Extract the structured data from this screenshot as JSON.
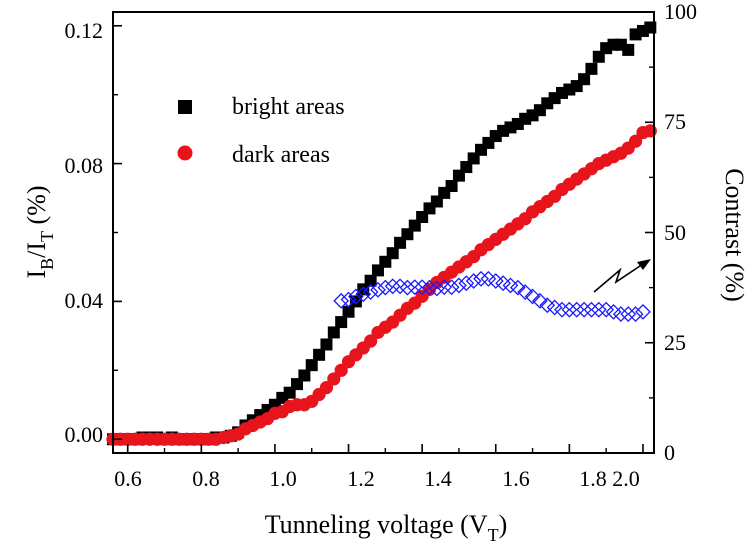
{
  "chart_data": {
    "type": "scatter",
    "title": "",
    "xlabel": "Tunneling voltage (V_T)",
    "xlabel_main": "Tunneling voltage (V",
    "xlabel_sub": "T",
    "xlabel_tail": ")",
    "ylabel_left": "I_B/I_T (%)",
    "ylabel_left_parts": {
      "i1": "I",
      "sub1": "B",
      "slash": "/I",
      "sub2": "T",
      "tail": " (%)"
    },
    "ylabel_right": "Contrast (%)",
    "xlim": [
      0.56,
      2.03
    ],
    "ylim_left": [
      -0.004,
      0.124
    ],
    "ylim_right": [
      0,
      100
    ],
    "x_ticks": [
      "0.6",
      "0.8",
      "1.0",
      "1.2",
      "1.4",
      "1.6",
      "1.8",
      "2.0"
    ],
    "y_left_ticks": [
      "0.00",
      "0.04",
      "0.08",
      "0.12"
    ],
    "y_right_ticks": [
      "0",
      "25",
      "50",
      "75",
      "100"
    ],
    "legend_position": "upper-left",
    "series": [
      {
        "name": "bright areas",
        "axis": "left",
        "marker": "square",
        "color": "#000000",
        "points": [
          [
            0.56,
            0.0
          ],
          [
            0.58,
            0.0
          ],
          [
            0.6,
            0.0
          ],
          [
            0.62,
            0.0
          ],
          [
            0.64,
            0.0005
          ],
          [
            0.66,
            0.0005
          ],
          [
            0.68,
            0.0005
          ],
          [
            0.7,
            0.0
          ],
          [
            0.72,
            0.0005
          ],
          [
            0.74,
            0.0
          ],
          [
            0.76,
            0.0
          ],
          [
            0.78,
            0.0
          ],
          [
            0.8,
            0.0
          ],
          [
            0.82,
            0.0
          ],
          [
            0.84,
            0.0005
          ],
          [
            0.86,
            0.0005
          ],
          [
            0.88,
            0.001
          ],
          [
            0.9,
            0.002
          ],
          [
            0.92,
            0.004
          ],
          [
            0.94,
            0.0055
          ],
          [
            0.96,
            0.007
          ],
          [
            0.98,
            0.0085
          ],
          [
            1.0,
            0.01
          ],
          [
            1.02,
            0.012
          ],
          [
            1.04,
            0.0135
          ],
          [
            1.06,
            0.016
          ],
          [
            1.08,
            0.0185
          ],
          [
            1.1,
            0.0215
          ],
          [
            1.12,
            0.0245
          ],
          [
            1.14,
            0.0275
          ],
          [
            1.16,
            0.031
          ],
          [
            1.18,
            0.034
          ],
          [
            1.2,
            0.037
          ],
          [
            1.22,
            0.04
          ],
          [
            1.24,
            0.0435
          ],
          [
            1.26,
            0.046
          ],
          [
            1.28,
            0.049
          ],
          [
            1.3,
            0.0515
          ],
          [
            1.32,
            0.054
          ],
          [
            1.34,
            0.057
          ],
          [
            1.36,
            0.0595
          ],
          [
            1.38,
            0.062
          ],
          [
            1.4,
            0.0645
          ],
          [
            1.42,
            0.067
          ],
          [
            1.44,
            0.069
          ],
          [
            1.46,
            0.0715
          ],
          [
            1.48,
            0.0735
          ],
          [
            1.5,
            0.0765
          ],
          [
            1.52,
            0.079
          ],
          [
            1.54,
            0.0815
          ],
          [
            1.56,
            0.084
          ],
          [
            1.58,
            0.086
          ],
          [
            1.6,
            0.088
          ],
          [
            1.62,
            0.0895
          ],
          [
            1.64,
            0.0905
          ],
          [
            1.66,
            0.0915
          ],
          [
            1.68,
            0.093
          ],
          [
            1.7,
            0.094
          ],
          [
            1.72,
            0.0955
          ],
          [
            1.74,
            0.0975
          ],
          [
            1.76,
            0.099
          ],
          [
            1.78,
            0.1005
          ],
          [
            1.8,
            0.1015
          ],
          [
            1.82,
            0.1025
          ],
          [
            1.84,
            0.1045
          ],
          [
            1.86,
            0.1075
          ],
          [
            1.88,
            0.111
          ],
          [
            1.9,
            0.1135
          ],
          [
            1.92,
            0.1145
          ],
          [
            1.94,
            0.1145
          ],
          [
            1.96,
            0.113
          ],
          [
            1.98,
            0.1175
          ],
          [
            2.0,
            0.1185
          ],
          [
            2.02,
            0.1195
          ]
        ]
      },
      {
        "name": "dark areas",
        "axis": "left",
        "marker": "circle",
        "color": "#e8141c",
        "points": [
          [
            0.56,
            0.0
          ],
          [
            0.58,
            0.0
          ],
          [
            0.6,
            0.0
          ],
          [
            0.62,
            0.0
          ],
          [
            0.64,
            0.0
          ],
          [
            0.66,
            0.0
          ],
          [
            0.68,
            0.0
          ],
          [
            0.7,
            0.0
          ],
          [
            0.72,
            0.0
          ],
          [
            0.74,
            0.0
          ],
          [
            0.76,
            0.0
          ],
          [
            0.78,
            0.0
          ],
          [
            0.8,
            0.0
          ],
          [
            0.82,
            0.0
          ],
          [
            0.84,
            0.0
          ],
          [
            0.86,
            0.0005
          ],
          [
            0.88,
            0.001
          ],
          [
            0.9,
            0.0015
          ],
          [
            0.92,
            0.003
          ],
          [
            0.94,
            0.004
          ],
          [
            0.96,
            0.005
          ],
          [
            0.98,
            0.006
          ],
          [
            1.0,
            0.0075
          ],
          [
            1.02,
            0.008
          ],
          [
            1.04,
            0.0095
          ],
          [
            1.06,
            0.01
          ],
          [
            1.08,
            0.01
          ],
          [
            1.1,
            0.011
          ],
          [
            1.12,
            0.013
          ],
          [
            1.14,
            0.015
          ],
          [
            1.16,
            0.0175
          ],
          [
            1.18,
            0.02
          ],
          [
            1.2,
            0.0225
          ],
          [
            1.22,
            0.0245
          ],
          [
            1.24,
            0.0265
          ],
          [
            1.26,
            0.0285
          ],
          [
            1.28,
            0.031
          ],
          [
            1.3,
            0.0325
          ],
          [
            1.32,
            0.034
          ],
          [
            1.34,
            0.036
          ],
          [
            1.36,
            0.038
          ],
          [
            1.38,
            0.0395
          ],
          [
            1.4,
            0.0415
          ],
          [
            1.42,
            0.0435
          ],
          [
            1.44,
            0.0455
          ],
          [
            1.46,
            0.047
          ],
          [
            1.48,
            0.0485
          ],
          [
            1.5,
            0.05
          ],
          [
            1.52,
            0.0515
          ],
          [
            1.54,
            0.053
          ],
          [
            1.56,
            0.055
          ],
          [
            1.58,
            0.0565
          ],
          [
            1.6,
            0.058
          ],
          [
            1.62,
            0.0595
          ],
          [
            1.64,
            0.061
          ],
          [
            1.66,
            0.0625
          ],
          [
            1.68,
            0.064
          ],
          [
            1.7,
            0.066
          ],
          [
            1.72,
            0.0675
          ],
          [
            1.74,
            0.069
          ],
          [
            1.76,
            0.0705
          ],
          [
            1.78,
            0.0725
          ],
          [
            1.8,
            0.074
          ],
          [
            1.82,
            0.0755
          ],
          [
            1.84,
            0.077
          ],
          [
            1.86,
            0.0785
          ],
          [
            1.88,
            0.08
          ],
          [
            1.9,
            0.081
          ],
          [
            1.92,
            0.082
          ],
          [
            1.94,
            0.083
          ],
          [
            1.96,
            0.0845
          ],
          [
            1.98,
            0.0865
          ],
          [
            2.0,
            0.089
          ],
          [
            2.02,
            0.0895
          ]
        ]
      },
      {
        "name": "contrast",
        "axis": "right",
        "marker": "open-diamond",
        "color": "#1a1aff",
        "points": [
          [
            1.18,
            34.5
          ],
          [
            1.2,
            34.8
          ],
          [
            1.22,
            35.5
          ],
          [
            1.24,
            36.0
          ],
          [
            1.26,
            36.5
          ],
          [
            1.28,
            37.0
          ],
          [
            1.3,
            37.5
          ],
          [
            1.32,
            37.8
          ],
          [
            1.34,
            37.8
          ],
          [
            1.36,
            37.5
          ],
          [
            1.38,
            37.6
          ],
          [
            1.4,
            37.6
          ],
          [
            1.42,
            37.5
          ],
          [
            1.44,
            37.3
          ],
          [
            1.46,
            37.6
          ],
          [
            1.48,
            37.6
          ],
          [
            1.5,
            38.0
          ],
          [
            1.52,
            38.5
          ],
          [
            1.54,
            39.0
          ],
          [
            1.56,
            39.5
          ],
          [
            1.58,
            39.5
          ],
          [
            1.6,
            39.0
          ],
          [
            1.62,
            38.5
          ],
          [
            1.64,
            38.0
          ],
          [
            1.66,
            37.5
          ],
          [
            1.68,
            36.5
          ],
          [
            1.7,
            35.5
          ],
          [
            1.72,
            34.5
          ],
          [
            1.74,
            33.5
          ],
          [
            1.76,
            33.0
          ],
          [
            1.78,
            32.5
          ],
          [
            1.8,
            32.5
          ],
          [
            1.82,
            32.5
          ],
          [
            1.84,
            32.5
          ],
          [
            1.86,
            32.5
          ],
          [
            1.88,
            32.5
          ],
          [
            1.9,
            32.5
          ],
          [
            1.92,
            32.0
          ],
          [
            1.94,
            31.5
          ],
          [
            1.96,
            31.5
          ],
          [
            1.98,
            31.5
          ],
          [
            2.0,
            32.0
          ]
        ]
      }
    ],
    "annotation": "arrow pointing to contrast series, right axis"
  }
}
